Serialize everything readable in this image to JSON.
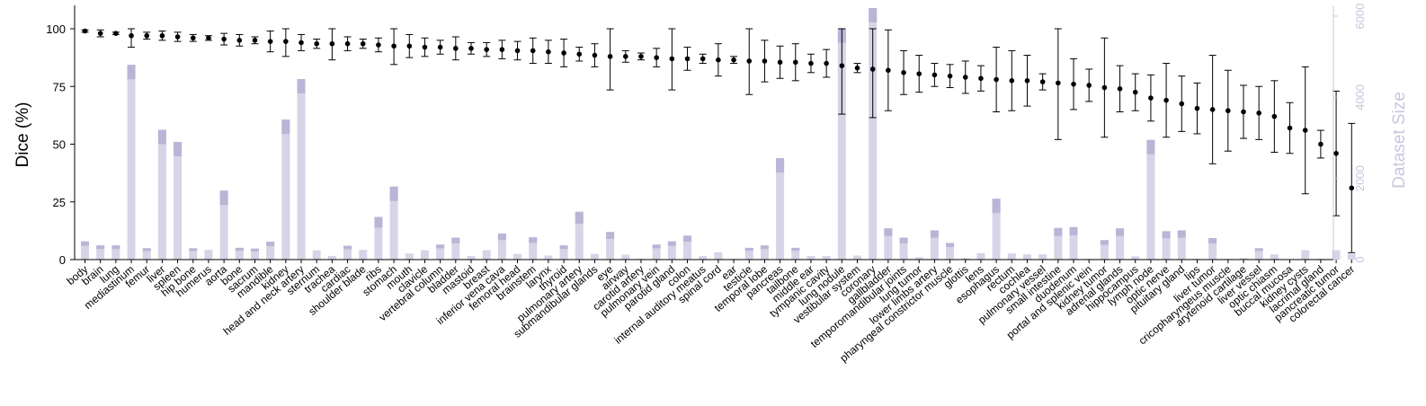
{
  "chart_data": {
    "type": "bar+errorbar",
    "ylabel_left": "Dice (%)",
    "ylabel_right": "Dataset Size",
    "ylim_left": [
      0,
      100
    ],
    "yticks_left": [
      "0",
      "25",
      "50",
      "75",
      "100"
    ],
    "ylim_right": [
      0,
      6000
    ],
    "yticks_right": [
      "0",
      "2000",
      "4000",
      "6000"
    ],
    "colors": {
      "bar": "#c9c6df",
      "bar_top": "#b9b5d6",
      "point": "#000000",
      "right_axis": "#c9c6df"
    },
    "categories": [
      "body",
      "brain",
      "lung",
      "mediastinum",
      "femur",
      "liver",
      "spleen",
      "hip bone",
      "humerus",
      "aorta",
      "bone",
      "sacrum",
      "mandible",
      "kidney",
      "head and neck artery",
      "sternum",
      "trachea",
      "cardiac",
      "shoulder blade",
      "ribs",
      "stomach",
      "mouth",
      "clavicle",
      "vertebral column",
      "bladder",
      "mastoid",
      "breast",
      "inferior vena cava",
      "femoral head",
      "brainstem",
      "larynx",
      "thyroid",
      "pulmonary artery",
      "submandibular glands",
      "eye",
      "airway",
      "carotid artery",
      "pulmonary vein",
      "parotid gland",
      "colon",
      "internal auditory meatus",
      "spinal cord",
      "ear",
      "testicle",
      "temporal lobe",
      "pancreas",
      "tailbone",
      "middle ear",
      "tympanic cavity",
      "lung nodule",
      "vestibular system",
      "coronary",
      "gallbladder",
      "temporomandibular joints",
      "lung tumor",
      "lower limbs artery",
      "pharyngeal constrictor muscle",
      "glottis",
      "lens",
      "esophagus",
      "rectum",
      "cochlea",
      "pulmonary vessel",
      "small intestine",
      "duodenum",
      "portal and splenic vein",
      "kidney tumor",
      "adrenal glands",
      "hippocampus",
      "lymph node",
      "optic nerve",
      "pituitary gland",
      "lips",
      "liver tumor",
      "cricopharyngeus muscle",
      "arytenoid cartilage",
      "liver vessel",
      "optic chiasm",
      "buccal mucosa",
      "kidney cysts",
      "lacrimal gland",
      "pancreatic tumor",
      "colorectal cancer"
    ],
    "dice_mean": [
      99,
      98,
      98,
      97,
      97,
      97,
      96.5,
      96,
      96,
      95.5,
      95,
      95,
      94.5,
      94.5,
      94,
      93.5,
      93.5,
      93.5,
      93.5,
      93,
      92.5,
      92.5,
      92,
      92,
      91.5,
      91.5,
      91,
      91,
      90.5,
      90.5,
      90,
      89.5,
      89,
      88.5,
      88,
      88,
      88,
      87.5,
      87,
      87,
      87,
      86.5,
      86.5,
      86,
      86,
      85.5,
      85.5,
      85,
      85,
      84,
      83,
      82.5,
      82,
      81,
      80.5,
      80,
      79.5,
      79,
      78.5,
      78,
      77.5,
      77.5,
      77,
      76.5,
      76,
      75.5,
      74.5,
      74,
      72.5,
      70,
      69,
      67.5,
      65.5,
      65,
      64.5,
      64,
      63.5,
      62,
      57,
      56,
      50,
      46,
      31
    ],
    "dice_err": [
      0.5,
      1.5,
      0.5,
      5,
      1.5,
      2,
      2,
      1.5,
      1,
      2.5,
      2.5,
      1.5,
      4.5,
      6.5,
      3.5,
      2,
      7,
      3,
      2,
      3,
      8,
      5,
      4,
      3,
      5,
      2.5,
      3,
      4,
      4,
      5.5,
      5,
      6,
      3,
      5,
      14.5,
      2.5,
      1.5,
      4,
      13.5,
      5,
      2,
      7,
      1.5,
      14.5,
      9,
      7,
      8,
      4,
      6,
      21,
      2,
      21,
      17.5,
      9.5,
      8,
      5,
      5,
      7,
      5.5,
      14,
      13,
      11,
      3.5,
      24.5,
      11,
      7,
      21.5,
      10,
      8,
      10,
      16,
      12,
      11,
      23.5,
      17.5,
      11.5,
      11.5,
      15.5,
      11,
      27.5,
      6,
      27,
      28
    ],
    "dataset_size": [
      450,
      350,
      350,
      4800,
      280,
      3200,
      2900,
      280,
      240,
      1700,
      290,
      270,
      440,
      3450,
      4450,
      230,
      90,
      340,
      240,
      1050,
      1800,
      150,
      230,
      370,
      540,
      90,
      230,
      640,
      140,
      550,
      100,
      350,
      1180,
      140,
      680,
      120,
      20,
      370,
      450,
      590,
      90,
      180,
      20,
      290,
      350,
      2500,
      290,
      90,
      90,
      5700,
      100,
      6200,
      770,
      540,
      60,
      720,
      410,
      40,
      160,
      1500,
      150,
      130,
      130,
      780,
      800,
      20,
      480,
      770,
      80,
      2950,
      700,
      720,
      20,
      530,
      20,
      40,
      280,
      130,
      10,
      230,
      20,
      230,
      140
    ]
  }
}
